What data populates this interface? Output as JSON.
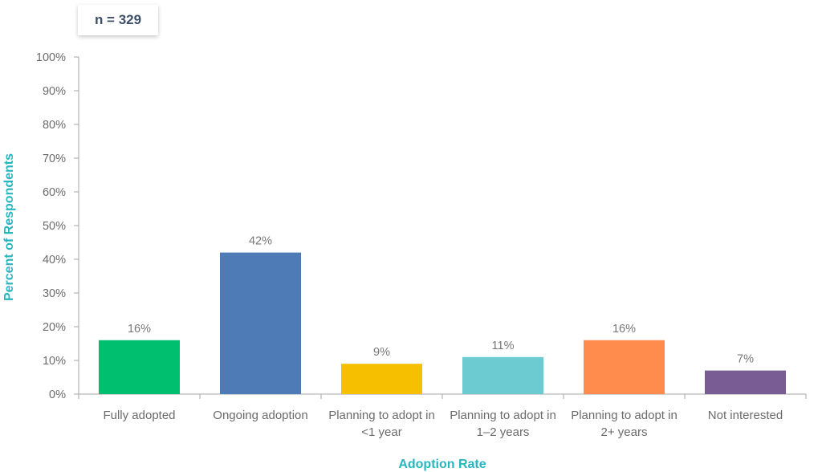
{
  "sample_note": "n = 329",
  "chart_data": {
    "type": "bar",
    "title": "",
    "xlabel": "Adoption Rate",
    "ylabel": "Percent of Respondents",
    "ylim": [
      0,
      100
    ],
    "yticks": [
      "0%",
      "10%",
      "20%",
      "30%",
      "40%",
      "50%",
      "60%",
      "70%",
      "80%",
      "90%",
      "100%"
    ],
    "categories": [
      [
        "Fully adopted"
      ],
      [
        "Ongoing adoption"
      ],
      [
        "Planning to adopt in",
        "<1 year"
      ],
      [
        "Planning to adopt in",
        "1–2 years"
      ],
      [
        "Planning to adopt in",
        "2+ years"
      ],
      [
        "Not interested"
      ]
    ],
    "values": [
      16,
      42,
      9,
      11,
      16,
      7
    ],
    "value_labels": [
      "16%",
      "42%",
      "9%",
      "11%",
      "16%",
      "7%"
    ],
    "colors": [
      "#00bf6f",
      "#4e7ab5",
      "#f6c000",
      "#6ccbd0",
      "#ff8c4d",
      "#7a5c94"
    ],
    "grid": false,
    "legend": "none"
  }
}
